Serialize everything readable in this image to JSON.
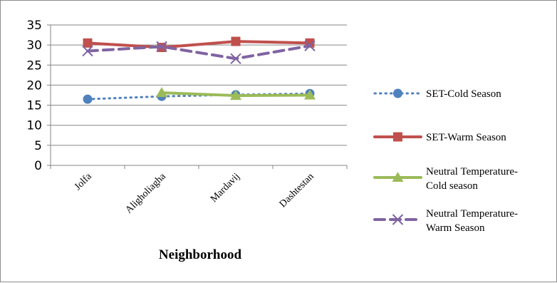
{
  "chart_data": {
    "type": "line",
    "xlabel": "Neighborhood",
    "ylabel": "",
    "ylim": [
      0,
      35
    ],
    "yticks": [
      0,
      5,
      10,
      15,
      20,
      25,
      30,
      35
    ],
    "grid": true,
    "legend_position": "right",
    "categories": [
      "Jolfa",
      "Aligholiagha",
      "Mardavij",
      "Dashtestan"
    ],
    "series": [
      {
        "name": "SET-Cold Season",
        "values": [
          16.5,
          17.2,
          17.6,
          17.9
        ],
        "color": "#4f81bd",
        "marker": "circle",
        "dash": "dotted"
      },
      {
        "name": "SET-Warm Season",
        "values": [
          30.5,
          29.4,
          30.9,
          30.5
        ],
        "color": "#c0504d",
        "marker": "square",
        "dash": "solid"
      },
      {
        "name": "Neutral Temperature-Cold season",
        "values": [
          null,
          18.1,
          17.4,
          17.5
        ],
        "color": "#9bbb59",
        "marker": "triangle",
        "dash": "solid"
      },
      {
        "name": "Neutral Temperature-Warm Season",
        "values": [
          28.5,
          29.6,
          26.6,
          29.8
        ],
        "color": "#8064a2",
        "marker": "x",
        "dash": "dashed"
      }
    ]
  }
}
